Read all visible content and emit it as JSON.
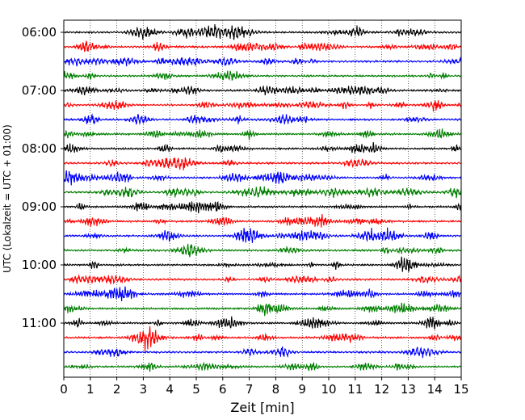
{
  "chart_data": {
    "type": "line",
    "title": "",
    "xlabel": "Zeit  [min]",
    "ylabel": "UTC (Lokalzeit = UTC + 01:00)",
    "xlim": [
      0,
      15
    ],
    "x_ticks": [
      "0",
      "1",
      "2",
      "3",
      "4",
      "5",
      "6",
      "7",
      "8",
      "9",
      "10",
      "11",
      "12",
      "13",
      "14",
      "15"
    ],
    "y_tick_labels": [
      "06:00",
      "07:00",
      "08:00",
      "09:00",
      "10:00",
      "11:00"
    ],
    "trace_start_times": [
      "06:00",
      "06:15",
      "06:30",
      "06:45",
      "07:00",
      "07:15",
      "07:30",
      "07:45",
      "08:00",
      "08:15",
      "08:30",
      "08:45",
      "09:00",
      "09:15",
      "09:30",
      "09:45",
      "10:00",
      "10:15",
      "10:30",
      "10:45",
      "11:00",
      "11:15",
      "11:30",
      "11:45"
    ],
    "trace_minutes_each": 15,
    "colors": [
      "#000000",
      "#ff0000",
      "#0000ff",
      "#007f00"
    ],
    "grid": "vertical-dotted"
  }
}
